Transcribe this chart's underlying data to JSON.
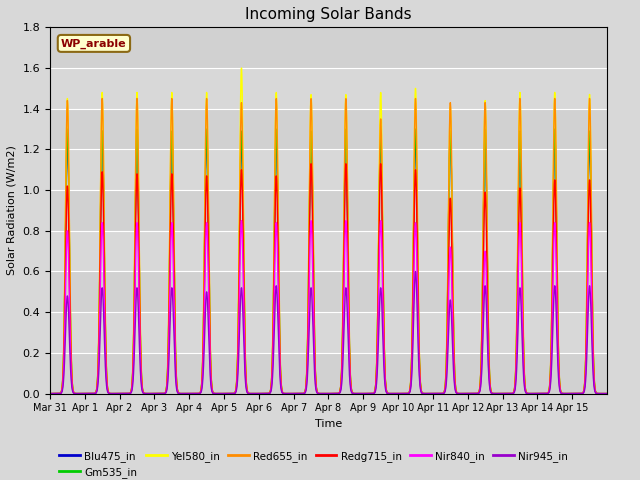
{
  "title": "Incoming Solar Bands",
  "xlabel": "Time",
  "ylabel": "Solar Radiation (W/m2)",
  "field_label": "WP_arable",
  "field_label_color": "#8B0000",
  "field_label_bg": "#FFFFCC",
  "field_label_border": "#8B6914",
  "ylim": [
    0,
    1.8
  ],
  "yticks": [
    0.0,
    0.2,
    0.4,
    0.6,
    0.8,
    1.0,
    1.2,
    1.4,
    1.6,
    1.8
  ],
  "bg_color": "#D8D8D8",
  "plot_bg_color": "#D8D8D8",
  "num_days": 16,
  "bands": [
    {
      "name": "Blu475_in",
      "color": "#0000CC",
      "peak": 1.28,
      "lw": 1.0
    },
    {
      "name": "Gm535_in",
      "color": "#00CC00",
      "peak": 1.3,
      "lw": 1.0
    },
    {
      "name": "Yel580_in",
      "color": "#FFFF00",
      "peak": 1.47,
      "lw": 1.0
    },
    {
      "name": "Red655_in",
      "color": "#FF8C00",
      "peak": 1.44,
      "lw": 1.0
    },
    {
      "name": "Redg715_in",
      "color": "#FF0000",
      "peak": 1.09,
      "lw": 1.0
    },
    {
      "name": "Nir840_in",
      "color": "#FF00FF",
      "peak": 0.85,
      "lw": 1.0
    },
    {
      "name": "Nir945_in",
      "color": "#9900CC",
      "peak": 0.52,
      "lw": 1.0
    }
  ],
  "tick_labels": [
    "Mar 31",
    "Apr 1",
    "Apr 2",
    "Apr 3",
    "Apr 4",
    "Apr 5",
    "Apr 6",
    "Apr 7",
    "Apr 8",
    "Apr 9",
    "Apr 10",
    "Apr 11",
    "Apr 12",
    "Apr 13",
    "Apr 14",
    "Apr 15"
  ],
  "peak_heights": {
    "Blu475_in": [
      1.28,
      1.29,
      1.28,
      1.27,
      1.29,
      1.27,
      1.28,
      1.27,
      1.28,
      1.27,
      1.28,
      1.29,
      1.28,
      1.27,
      1.28,
      1.27
    ],
    "Gm535_in": [
      1.3,
      1.29,
      1.3,
      1.29,
      1.3,
      1.29,
      1.3,
      1.29,
      1.3,
      1.29,
      1.3,
      1.29,
      1.3,
      1.29,
      1.3,
      1.29
    ],
    "Yel580_in": [
      1.45,
      1.48,
      1.48,
      1.48,
      1.48,
      1.6,
      1.48,
      1.47,
      1.47,
      1.48,
      1.5,
      1.41,
      1.44,
      1.48,
      1.48,
      1.47
    ],
    "Red655_in": [
      1.44,
      1.45,
      1.45,
      1.45,
      1.45,
      1.43,
      1.45,
      1.45,
      1.45,
      1.35,
      1.45,
      1.43,
      1.43,
      1.45,
      1.45,
      1.45
    ],
    "Redg715_in": [
      1.02,
      1.09,
      1.08,
      1.08,
      1.07,
      1.1,
      1.07,
      1.13,
      1.13,
      1.13,
      1.1,
      0.96,
      0.99,
      1.01,
      1.05,
      1.05
    ],
    "Nir840_in": [
      0.8,
      0.84,
      0.84,
      0.84,
      0.84,
      0.85,
      0.84,
      0.85,
      0.85,
      0.85,
      0.84,
      0.72,
      0.7,
      0.84,
      0.84,
      0.84
    ],
    "Nir945_in": [
      0.48,
      0.52,
      0.52,
      0.52,
      0.5,
      0.52,
      0.53,
      0.52,
      0.52,
      0.52,
      0.6,
      0.46,
      0.53,
      0.52,
      0.53,
      0.53
    ]
  }
}
